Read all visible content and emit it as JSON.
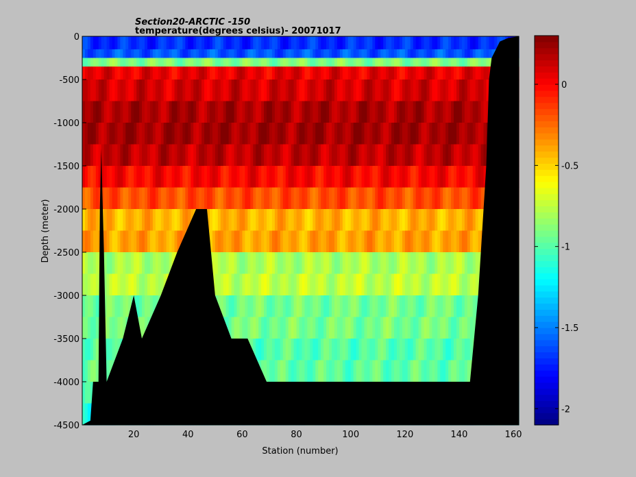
{
  "chart_data": {
    "type": "heatmap",
    "title": "Section20-ARCTIC  -150",
    "subtitle": "temperature(degrees  celsius)- 20071017",
    "xlabel": "Station (number)",
    "ylabel": "Depth (meter)",
    "xlim": [
      1,
      162
    ],
    "ylim": [
      -4500,
      0
    ],
    "xticks": [
      20,
      40,
      60,
      80,
      100,
      120,
      140,
      160
    ],
    "yticks": [
      0,
      -500,
      -1000,
      -1500,
      -2000,
      -2500,
      -3000,
      -3500,
      -4000,
      -4500
    ],
    "colorbar": {
      "ticks": [
        0,
        -0.5,
        -1,
        -1.5,
        -2
      ],
      "range": [
        -2.1,
        0.3
      ],
      "colormap": "jet"
    },
    "depth_bands": [
      {
        "depth": 0,
        "temp": -1.7
      },
      {
        "depth": -150,
        "temp": -1.6
      },
      {
        "depth": -250,
        "temp": -0.9
      },
      {
        "depth": -350,
        "temp": 0.05
      },
      {
        "depth": -500,
        "temp": 0.1
      },
      {
        "depth": -750,
        "temp": 0.2
      },
      {
        "depth": -1000,
        "temp": 0.22
      },
      {
        "depth": -1250,
        "temp": 0.15
      },
      {
        "depth": -1500,
        "temp": 0.0
      },
      {
        "depth": -1750,
        "temp": -0.18
      },
      {
        "depth": -2000,
        "temp": -0.42
      },
      {
        "depth": -2250,
        "temp": -0.38
      },
      {
        "depth": -2500,
        "temp": -0.8
      },
      {
        "depth": -2750,
        "temp": -0.75
      },
      {
        "depth": -3000,
        "temp": -0.93
      },
      {
        "depth": -3250,
        "temp": -0.92
      },
      {
        "depth": -3500,
        "temp": -1.0
      },
      {
        "depth": -3750,
        "temp": -0.98
      },
      {
        "depth": -4000,
        "temp": -1.1
      },
      {
        "depth": -4250,
        "temp": -1.2
      }
    ],
    "bathymetry": [
      {
        "station": 1,
        "depth": -4500
      },
      {
        "station": 4,
        "depth": -4450
      },
      {
        "station": 5,
        "depth": -4000
      },
      {
        "station": 7,
        "depth": -4000
      },
      {
        "station": 7.5,
        "depth": -2000
      },
      {
        "station": 8,
        "depth": -1300
      },
      {
        "station": 9,
        "depth": -2500
      },
      {
        "station": 10,
        "depth": -4000
      },
      {
        "station": 16,
        "depth": -3500
      },
      {
        "station": 20,
        "depth": -3000
      },
      {
        "station": 23,
        "depth": -3500
      },
      {
        "station": 30,
        "depth": -3000
      },
      {
        "station": 36,
        "depth": -2500
      },
      {
        "station": 43,
        "depth": -2000
      },
      {
        "station": 47,
        "depth": -2000
      },
      {
        "station": 50,
        "depth": -3000
      },
      {
        "station": 56,
        "depth": -3500
      },
      {
        "station": 62,
        "depth": -3500
      },
      {
        "station": 69,
        "depth": -4000
      },
      {
        "station": 144,
        "depth": -4000
      },
      {
        "station": 147,
        "depth": -3000
      },
      {
        "station": 150,
        "depth": -1500
      },
      {
        "station": 151,
        "depth": -500
      },
      {
        "station": 152,
        "depth": -250
      },
      {
        "station": 155,
        "depth": -60
      },
      {
        "station": 158,
        "depth": -20
      },
      {
        "station": 162,
        "depth": 0
      }
    ],
    "grid": false,
    "legend": "colorbar-right"
  }
}
